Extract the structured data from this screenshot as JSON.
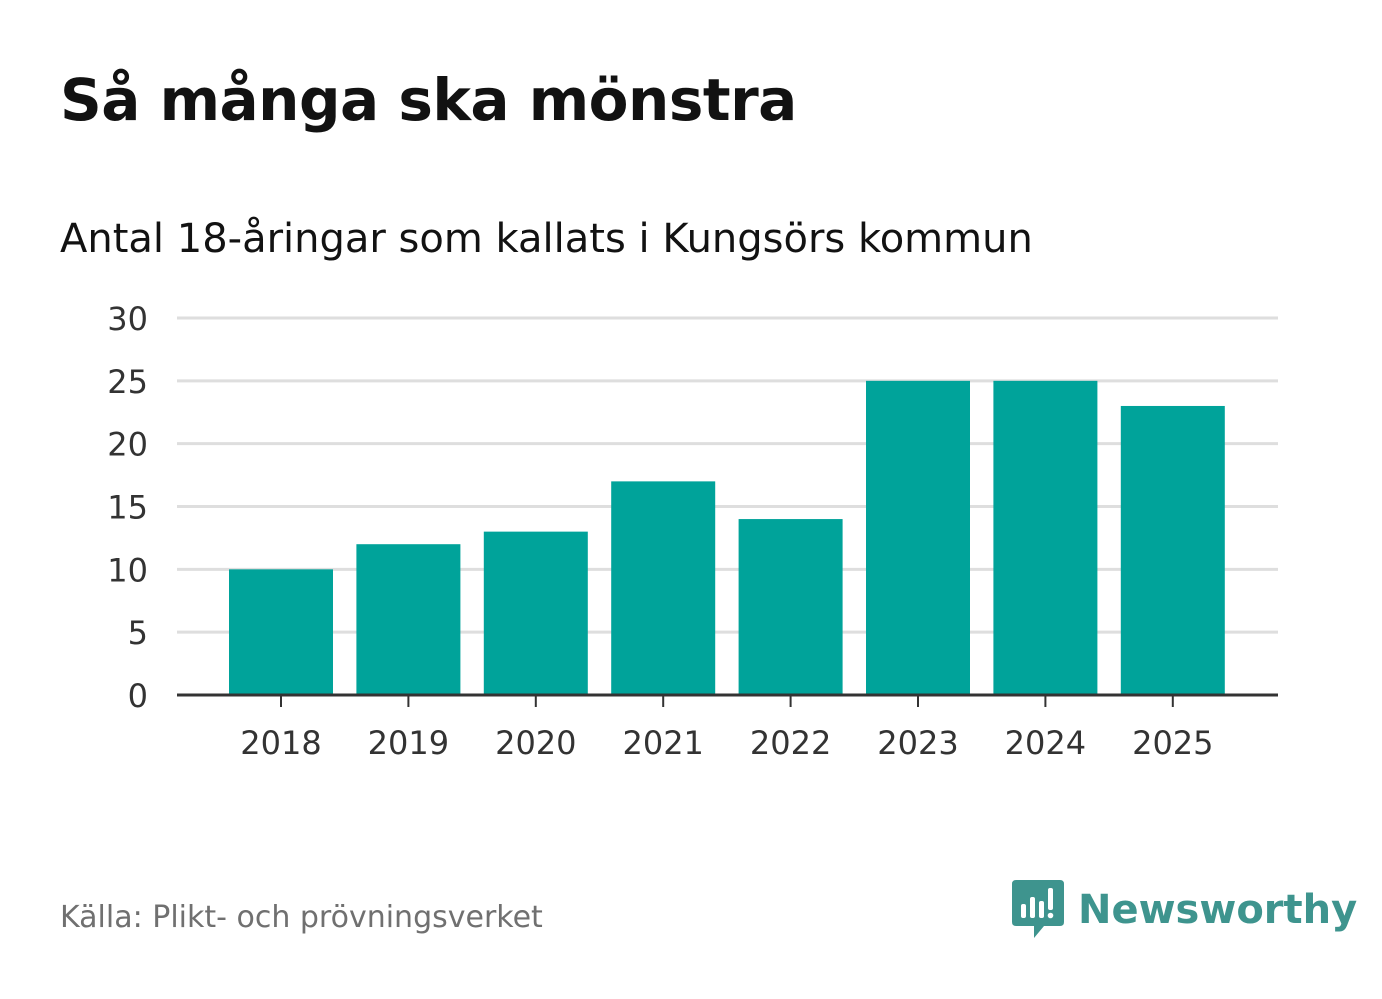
{
  "title": "Så många ska mönstra",
  "subtitle": "Antal 18-åringar som kallats i Kungsörs kommun",
  "source": "Källa: Plikt- och prövningsverket",
  "brand": {
    "name": "Newsworthy",
    "icon": "newsworthy-logo-icon",
    "color": "#3e948e"
  },
  "colors": {
    "bar": "#00a39a",
    "grid": "#dedede",
    "axis": "#333333"
  },
  "chart_data": {
    "type": "bar",
    "title": "Så många ska mönstra",
    "subtitle": "Antal 18-åringar som kallats i Kungsörs kommun",
    "xlabel": "",
    "ylabel": "",
    "categories": [
      "2018",
      "2019",
      "2020",
      "2021",
      "2022",
      "2023",
      "2024",
      "2025"
    ],
    "values": [
      10,
      12,
      13,
      17,
      14,
      25,
      25,
      23
    ],
    "ylim": [
      0,
      30
    ],
    "yticks": [
      0,
      5,
      10,
      15,
      20,
      25,
      30
    ],
    "grid": true,
    "legend": "none"
  }
}
